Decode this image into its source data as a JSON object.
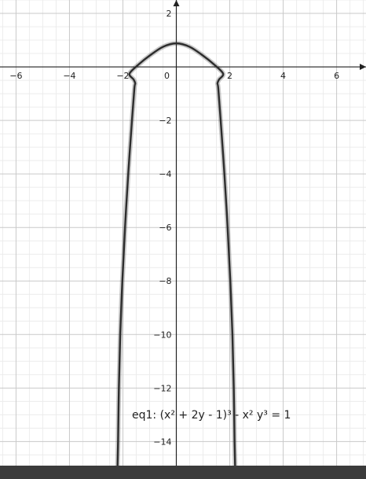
{
  "chart_data": {
    "type": "line",
    "title": "",
    "xlabel": "",
    "ylabel": "",
    "xlim": [
      -6.6,
      7.1
    ],
    "ylim": [
      -14.9,
      2.5
    ],
    "grid": true,
    "x_tick_labels": [
      {
        "value": -6,
        "label": "−6"
      },
      {
        "value": -4,
        "label": "−4"
      },
      {
        "value": -2,
        "label": "−2"
      },
      {
        "value": 0,
        "label": "0"
      },
      {
        "value": 2,
        "label": "2"
      },
      {
        "value": 4,
        "label": "4"
      },
      {
        "value": 6,
        "label": "6"
      }
    ],
    "y_tick_labels": [
      {
        "value": 2,
        "label": "2"
      },
      {
        "value": -2,
        "label": "−2"
      },
      {
        "value": -4,
        "label": "−4"
      },
      {
        "value": -6,
        "label": "−6"
      },
      {
        "value": -8,
        "label": "−8"
      },
      {
        "value": -10,
        "label": "−10"
      },
      {
        "value": -12,
        "label": "−12"
      },
      {
        "value": -14,
        "label": "−14"
      }
    ],
    "series": [
      {
        "name": "eq1: (x² + 2y - 1)³ - x² y³ = 1",
        "color": "#2d2d2d",
        "points": [
          [
            -2.2,
            -14.9
          ],
          [
            -2.18,
            -14.0
          ],
          [
            -2.15,
            -12.0
          ],
          [
            -2.1,
            -10.0
          ],
          [
            -2.02,
            -8.0
          ],
          [
            -1.92,
            -6.0
          ],
          [
            -1.8,
            -4.0
          ],
          [
            -1.66,
            -2.0
          ],
          [
            -1.57,
            -0.8
          ],
          [
            -1.54,
            -0.62
          ],
          [
            -1.6,
            -0.47
          ],
          [
            -1.75,
            -0.25
          ],
          [
            -1.4,
            0.1
          ],
          [
            -1.0,
            0.42
          ],
          [
            -0.5,
            0.75
          ],
          [
            0.0,
            0.88
          ],
          [
            0.5,
            0.75
          ],
          [
            1.0,
            0.42
          ],
          [
            1.4,
            0.1
          ],
          [
            1.75,
            -0.25
          ],
          [
            1.6,
            -0.47
          ],
          [
            1.54,
            -0.62
          ],
          [
            1.57,
            -0.8
          ],
          [
            1.66,
            -2.0
          ],
          [
            1.8,
            -4.0
          ],
          [
            1.92,
            -6.0
          ],
          [
            2.02,
            -8.0
          ],
          [
            2.1,
            -10.0
          ],
          [
            2.15,
            -12.0
          ],
          [
            2.18,
            -14.0
          ],
          [
            2.2,
            -14.9
          ]
        ]
      }
    ]
  },
  "legend": {
    "equation_label": "eq1: (x² + 2y - 1)³ - x² y³ = 1"
  }
}
